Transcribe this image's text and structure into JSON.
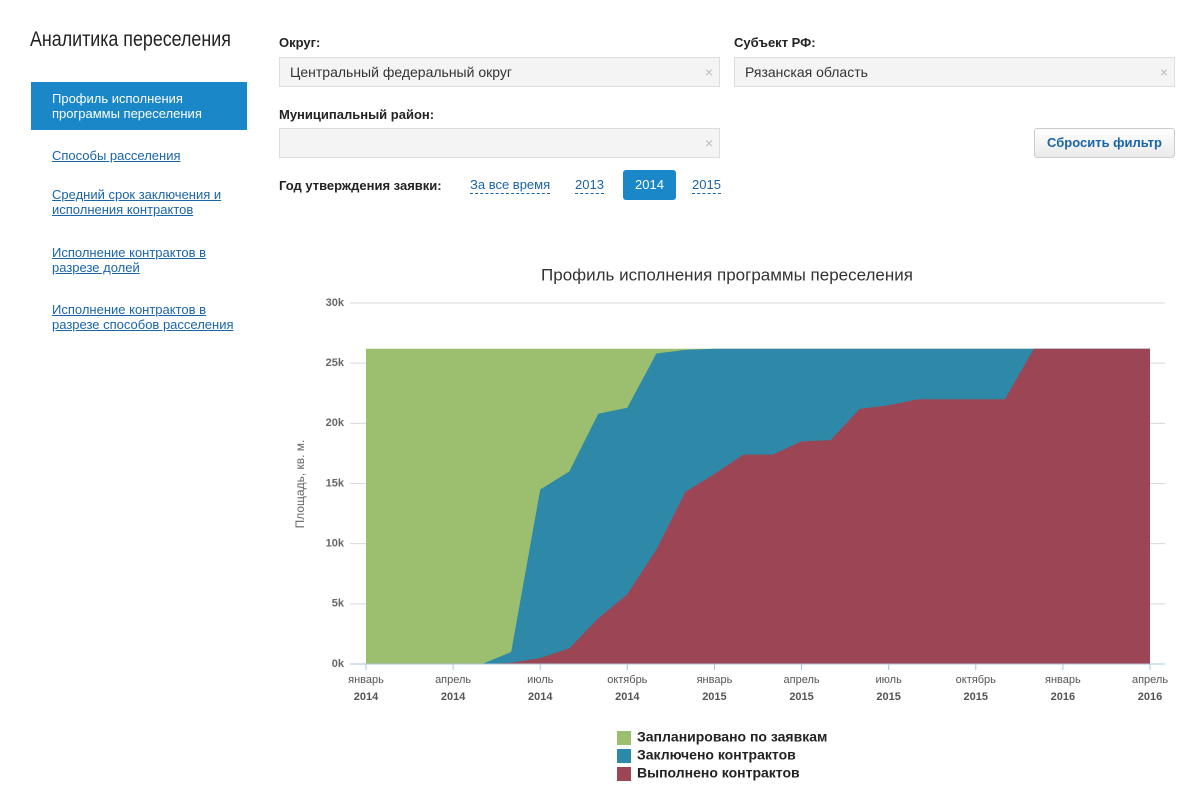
{
  "sidebar": {
    "title": "Аналитика переселения",
    "menu": [
      "Профиль исполнения программы переселения",
      "Способы расселения",
      "Средний срок заключения и исполнения контрактов",
      "Исполнение контрактов в разрезе долей",
      "Исполнение контрактов в разрезе способов расселения"
    ],
    "active": 0
  },
  "filters": {
    "district": {
      "label": "Округ:",
      "value": "Центральный федеральный округ"
    },
    "subject": {
      "label": "Субъект РФ:",
      "value": "Рязанская область"
    },
    "municipality": {
      "label": "Муниципальный район:"
    },
    "reset": "Сбросить фильтр",
    "year": {
      "label": "Год утверждения заявки:",
      "options": [
        "За все время",
        "2013",
        "2014",
        "2015"
      ],
      "active": 2
    }
  },
  "chart_data": {
    "type": "area",
    "title": "Профиль исполнения программы переселения",
    "y_label": "Площадь, кв. м.",
    "x": [
      "2014-01",
      "2014-02",
      "2014-03",
      "2014-04",
      "2014-05",
      "2014-06",
      "2014-07",
      "2014-08",
      "2014-09",
      "2014-10",
      "2014-11",
      "2014-12",
      "2015-01",
      "2015-02",
      "2015-03",
      "2015-04",
      "2015-05",
      "2015-06",
      "2015-07",
      "2015-08",
      "2015-09",
      "2015-10",
      "2015-11",
      "2015-12",
      "2016-01",
      "2016-02",
      "2016-03",
      "2016-04"
    ],
    "xlim": [
      "2014-01",
      "2016-04"
    ],
    "xticks": [
      {
        "value": "2014-01",
        "label": "январь 2014"
      },
      {
        "value": "2014-04",
        "label": "апрель 2014"
      },
      {
        "value": "2014-07",
        "label": "июль 2014"
      },
      {
        "value": "2014-10",
        "label": "октябрь 2014"
      },
      {
        "value": "2015-01",
        "label": "январь 2015"
      },
      {
        "value": "2015-04",
        "label": "апрель 2015"
      },
      {
        "value": "2015-07",
        "label": "июль 2015"
      },
      {
        "value": "2015-10",
        "label": "октябрь 2015"
      },
      {
        "value": "2016-01",
        "label": "январь 2016"
      },
      {
        "value": "2016-04",
        "label": "апрель 2016"
      }
    ],
    "ylim": [
      0,
      30000
    ],
    "yticks": [
      {
        "value": 0,
        "label": "0k"
      },
      {
        "value": 5000,
        "label": "5k"
      },
      {
        "value": 10000,
        "label": "10k"
      },
      {
        "value": 15000,
        "label": "15k"
      },
      {
        "value": 20000,
        "label": "20k"
      },
      {
        "value": 25000,
        "label": "25k"
      },
      {
        "value": 30000,
        "label": "30k"
      }
    ],
    "grid": true,
    "series": [
      {
        "name": "Запланировано по заявкам",
        "color": "#9bbf6e",
        "values": [
          26200,
          26200,
          26200,
          26200,
          26200,
          26200,
          26200,
          26200,
          26200,
          26200,
          26200,
          26200,
          26200,
          26200,
          26200,
          26200,
          26200,
          26200,
          26200,
          26200,
          26200,
          26200,
          26200,
          26200,
          26200,
          26200,
          26200,
          26200
        ]
      },
      {
        "name": "Заключено контрактов",
        "color": "#2e88a8",
        "values": [
          0,
          0,
          0,
          0,
          0,
          1000,
          14500,
          16000,
          20800,
          21300,
          25800,
          26100,
          26200,
          26200,
          26200,
          26200,
          26200,
          26200,
          26200,
          26200,
          26200,
          26200,
          26200,
          26200,
          26200,
          26200,
          26200,
          26200
        ]
      },
      {
        "name": "Выполнено контрактов",
        "color": "#9c4655",
        "values": [
          0,
          0,
          0,
          0,
          0,
          100,
          500,
          1300,
          3800,
          5800,
          9500,
          14300,
          15800,
          17400,
          17400,
          18500,
          18600,
          21200,
          21500,
          22000,
          22000,
          22000,
          22000,
          26200,
          26200,
          26200,
          26200,
          26200
        ]
      }
    ]
  }
}
